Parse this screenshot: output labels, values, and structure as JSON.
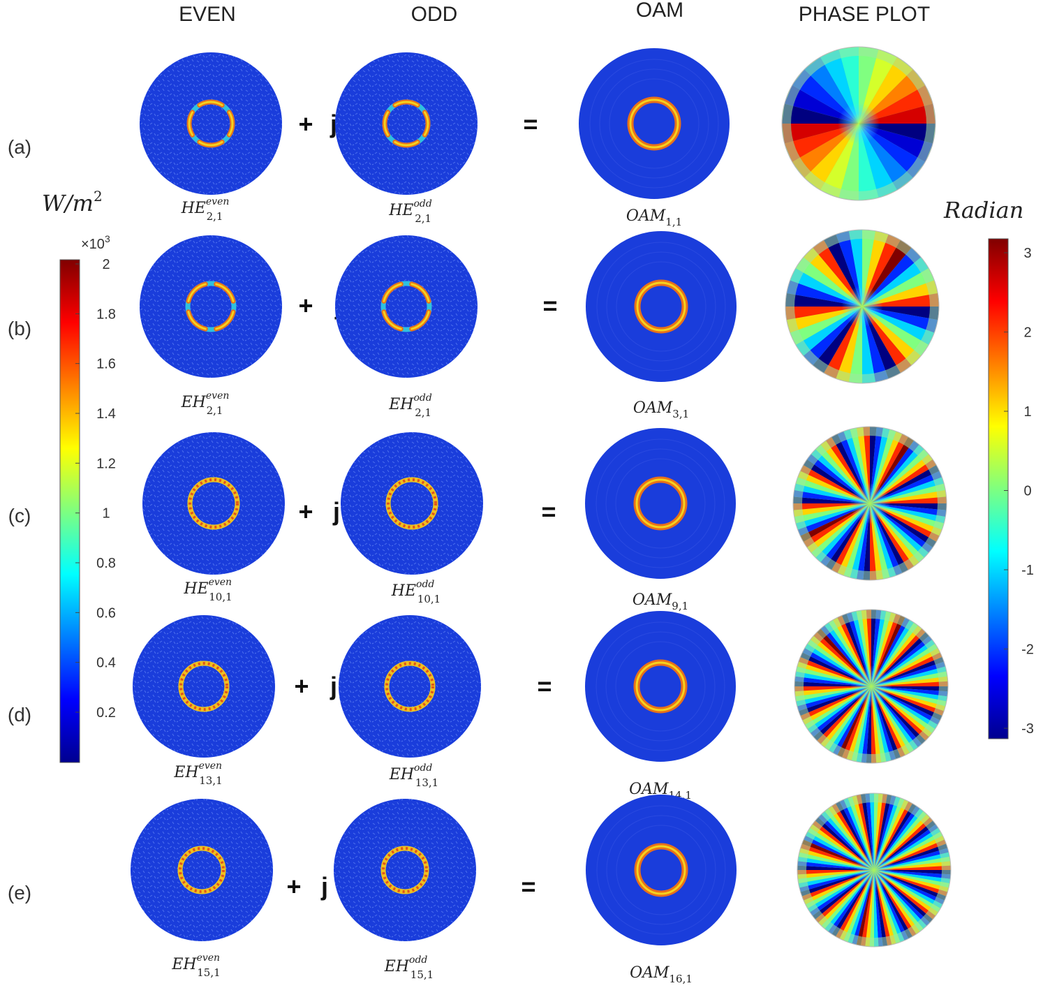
{
  "headers": {
    "even": "EVEN",
    "odd": "ODD",
    "oam": "OAM",
    "phase": "PHASE PLOT"
  },
  "operators": {
    "plus": "+",
    "j": "j",
    "equals": "="
  },
  "rows": [
    {
      "label": "(a)",
      "even": {
        "base": "HE",
        "sup": "even",
        "sub": "2,1"
      },
      "odd": {
        "base": "HE",
        "sup": "odd",
        "sub": "2,1"
      },
      "oam": {
        "base": "OAM",
        "sub": "1,1"
      },
      "phase_spokes": 2
    },
    {
      "label": "(b)",
      "even": {
        "base": "EH",
        "sup": "even",
        "sub": "2,1"
      },
      "odd": {
        "base": "EH",
        "sup": "odd",
        "sub": "2,1"
      },
      "oam": {
        "base": "OAM",
        "sub": "3,1"
      },
      "phase_spokes": 6
    },
    {
      "label": "(c)",
      "even": {
        "base": "HE",
        "sup": "even",
        "sub": "10,1"
      },
      "odd": {
        "base": "HE",
        "sup": "odd",
        "sub": "10,1"
      },
      "oam": {
        "base": "OAM",
        "sub": "9,1"
      },
      "phase_spokes": 12
    },
    {
      "label": "(d)",
      "even": {
        "base": "EH",
        "sup": "even",
        "sub": "13,1"
      },
      "odd": {
        "base": "EH",
        "sup": "odd",
        "sub": "13,1"
      },
      "oam": {
        "base": "OAM",
        "sub": "14,1"
      },
      "phase_spokes": 16
    },
    {
      "label": "(e)",
      "even": {
        "base": "EH",
        "sup": "even",
        "sub": "15,1"
      },
      "odd": {
        "base": "EH",
        "sup": "odd",
        "sub": "15,1"
      },
      "oam": {
        "base": "OAM",
        "sub": "16,1"
      },
      "phase_spokes": 18
    }
  ],
  "intensity_colorbar": {
    "unit": "W/m",
    "unit_exponent": "2",
    "multiplier": "×10",
    "multiplier_exponent": "3",
    "ticks": [
      "2",
      "1.8",
      "1.6",
      "1.4",
      "1.2",
      "1",
      "0.8",
      "0.6",
      "0.4",
      "0.2"
    ],
    "range": [
      0,
      2
    ],
    "colormap": "jet"
  },
  "phase_colorbar": {
    "unit": "Radian",
    "ticks": [
      "3",
      "2",
      "1",
      "0",
      "-1",
      "-2",
      "-3"
    ],
    "range": [
      -3.1416,
      3.1416
    ],
    "colormap": "jet"
  },
  "colors": {
    "background_field": "#1a3ddb",
    "ring_outer": "#e8701a",
    "ring_core": "#f5d21e",
    "jet_dark_blue": "#00008f",
    "jet_dark_red": "#800000"
  }
}
